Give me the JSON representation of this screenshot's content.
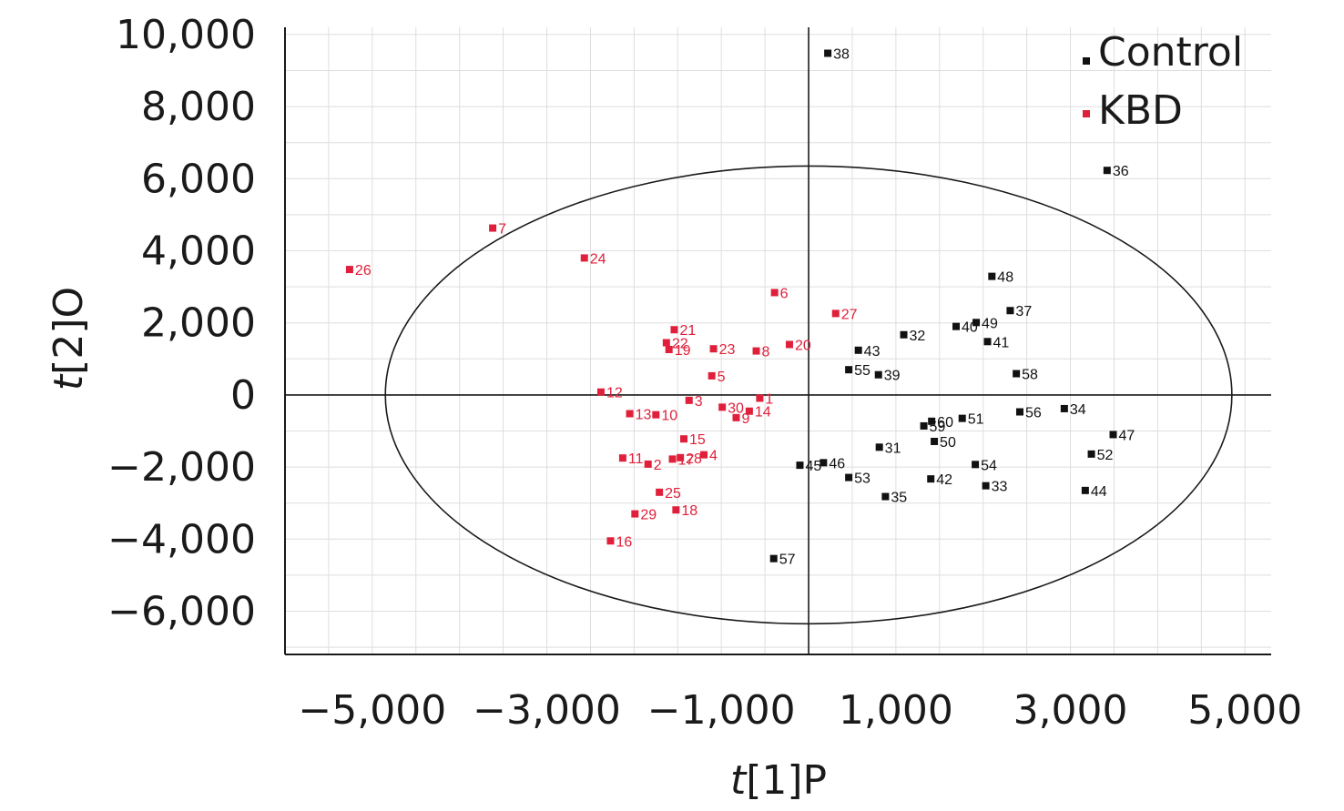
{
  "chart_data": {
    "type": "scatter",
    "xlabel_italic": "t",
    "xlabel_rest": "[1]P",
    "ylabel_italic": "t",
    "ylabel_rest": "[2]O",
    "xlim": [
      -6000,
      5300
    ],
    "ylim": [
      -7200,
      10200
    ],
    "x_ticks": [
      -5000,
      -3000,
      -1000,
      1000,
      3000,
      5000
    ],
    "x_tick_labels": [
      "−5,000",
      "−3,000",
      "−1,000",
      "1,000",
      "3,000",
      "5,000"
    ],
    "y_ticks": [
      -6000,
      -4000,
      -2000,
      0,
      2000,
      4000,
      6000,
      8000,
      10000
    ],
    "y_tick_labels": [
      "−6,000",
      "−4,000",
      "−2,000",
      "0",
      "2,000",
      "4,000",
      "6,000",
      "8,000",
      "10,000"
    ],
    "grid": true,
    "legend_position": "top-right",
    "ellipse": {
      "cx": 0,
      "cy": 0,
      "rx": 4850,
      "ry": 6350
    },
    "series": [
      {
        "name": "Control",
        "color": "#111111",
        "points": [
          {
            "label": "31",
            "x": 810,
            "y": -1450
          },
          {
            "label": "32",
            "x": 1090,
            "y": 1670
          },
          {
            "label": "33",
            "x": 2030,
            "y": -2520
          },
          {
            "label": "34",
            "x": 2930,
            "y": -380
          },
          {
            "label": "35",
            "x": 880,
            "y": -2820
          },
          {
            "label": "36",
            "x": 3420,
            "y": 6230
          },
          {
            "label": "37",
            "x": 2310,
            "y": 2340
          },
          {
            "label": "38",
            "x": 220,
            "y": 9480
          },
          {
            "label": "39",
            "x": 800,
            "y": 560
          },
          {
            "label": "41",
            "x": 2050,
            "y": 1480
          },
          {
            "label": "42",
            "x": 1400,
            "y": -2330
          },
          {
            "label": "43",
            "x": 570,
            "y": 1240
          },
          {
            "label": "44",
            "x": 3170,
            "y": -2650
          },
          {
            "label": "45",
            "x": -100,
            "y": -1950
          },
          {
            "label": "46",
            "x": 170,
            "y": -1880
          },
          {
            "label": "47",
            "x": 3490,
            "y": -1100
          },
          {
            "label": "48",
            "x": 2100,
            "y": 3290
          },
          {
            "label": "49",
            "x": 1920,
            "y": 2010
          },
          {
            "label": "40",
            "x": 1690,
            "y": 1900
          },
          {
            "label": "50",
            "x": 1440,
            "y": -1290
          },
          {
            "label": "51",
            "x": 1760,
            "y": -650
          },
          {
            "label": "52",
            "x": 3240,
            "y": -1640
          },
          {
            "label": "53",
            "x": 460,
            "y": -2290
          },
          {
            "label": "54",
            "x": 1910,
            "y": -1930
          },
          {
            "label": "55",
            "x": 460,
            "y": 700
          },
          {
            "label": "56",
            "x": 2420,
            "y": -470
          },
          {
            "label": "57",
            "x": -400,
            "y": -4540
          },
          {
            "label": "58",
            "x": 2380,
            "y": 590
          },
          {
            "label": "59",
            "x": 1320,
            "y": -860
          },
          {
            "label": "60",
            "x": 1410,
            "y": -730
          }
        ]
      },
      {
        "name": "KBD",
        "color": "#e0203a",
        "points": [
          {
            "label": "1",
            "x": -560,
            "y": -90
          },
          {
            "label": "2",
            "x": -1840,
            "y": -1920
          },
          {
            "label": "3",
            "x": -1370,
            "y": -150
          },
          {
            "label": "4",
            "x": -1200,
            "y": -1660
          },
          {
            "label": "5",
            "x": -1110,
            "y": 530
          },
          {
            "label": "6",
            "x": -390,
            "y": 2840
          },
          {
            "label": "7",
            "x": -3620,
            "y": 4630
          },
          {
            "label": "8",
            "x": -600,
            "y": 1220
          },
          {
            "label": "9",
            "x": -830,
            "y": -630
          },
          {
            "label": "10",
            "x": -1750,
            "y": -550
          },
          {
            "label": "11",
            "x": -2130,
            "y": -1750
          },
          {
            "label": "12",
            "x": -2380,
            "y": 80
          },
          {
            "label": "13",
            "x": -2050,
            "y": -520
          },
          {
            "label": "14",
            "x": -680,
            "y": -450
          },
          {
            "label": "15",
            "x": -1430,
            "y": -1220
          },
          {
            "label": "16",
            "x": -2270,
            "y": -4050
          },
          {
            "label": "17",
            "x": -1560,
            "y": -1780
          },
          {
            "label": "18",
            "x": -1520,
            "y": -3190
          },
          {
            "label": "19",
            "x": -1600,
            "y": 1260
          },
          {
            "label": "20",
            "x": -220,
            "y": 1400
          },
          {
            "label": "21",
            "x": -1540,
            "y": 1810
          },
          {
            "label": "22",
            "x": -1630,
            "y": 1450
          },
          {
            "label": "23",
            "x": -1090,
            "y": 1280
          },
          {
            "label": "24",
            "x": -2570,
            "y": 3800
          },
          {
            "label": "25",
            "x": -1710,
            "y": -2700
          },
          {
            "label": "26",
            "x": -5260,
            "y": 3480
          },
          {
            "label": "27",
            "x": 310,
            "y": 2260
          },
          {
            "label": "28",
            "x": -1470,
            "y": -1740
          },
          {
            "label": "29",
            "x": -1990,
            "y": -3300
          },
          {
            "label": "30",
            "x": -990,
            "y": -340
          }
        ]
      }
    ]
  }
}
